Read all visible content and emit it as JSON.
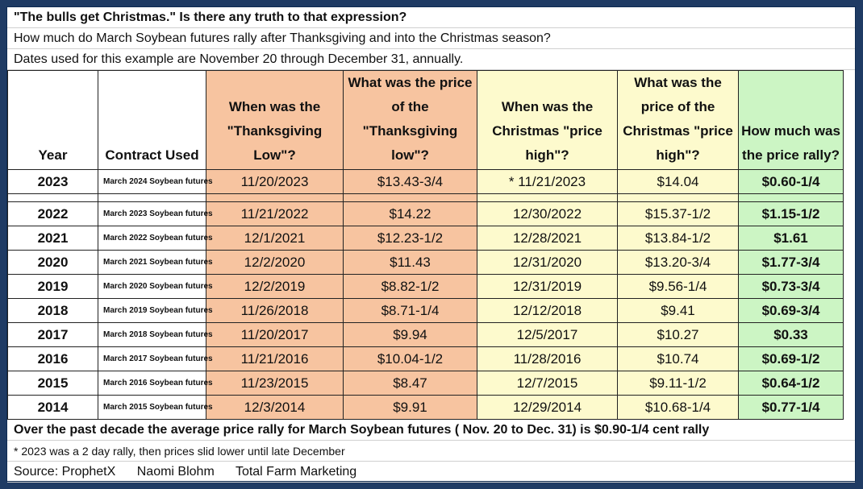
{
  "header": {
    "title": "\"The bulls get Christmas.\" Is there any truth to that expression?",
    "question": "How much do March Soybean futures rally after Thanksgiving and into the Christmas season?",
    "dates_note": "Dates used for this example are November 20 through December 31, annually."
  },
  "table": {
    "headers": {
      "year": "Year",
      "contract": "Contract Used",
      "thanksgiving_low": "When was the \"Thanksgiving Low\"?",
      "thanksgiving_price": "What was the price of the \"Thanksgiving low\"?",
      "christmas_high": "When was the Christmas \"price high\"?",
      "christmas_price": "What was the price of the Christmas \"price high\"?",
      "rally": "How much was the price rally?"
    },
    "rows": [
      {
        "year": "2023",
        "contract": "March 2024 Soybean futures",
        "tlow": "11/20/2023",
        "tprice": "$13.43-3/4",
        "xdate": "*  11/21/2023",
        "xprice": "$14.04",
        "rally": "$0.60-1/4"
      },
      {
        "year": "2022",
        "contract": "March 2023 Soybean futures",
        "tlow": "11/21/2022",
        "tprice": "$14.22",
        "xdate": "12/30/2022",
        "xprice": "$15.37-1/2",
        "rally": "$1.15-1/2"
      },
      {
        "year": "2021",
        "contract": "March 2022 Soybean futures",
        "tlow": "12/1/2021",
        "tprice": "$12.23-1/2",
        "xdate": "12/28/2021",
        "xprice": "$13.84-1/2",
        "rally": "$1.61"
      },
      {
        "year": "2020",
        "contract": "March 2021 Soybean futures",
        "tlow": "12/2/2020",
        "tprice": "$11.43",
        "xdate": "12/31/2020",
        "xprice": "$13.20-3/4",
        "rally": "$1.77-3/4"
      },
      {
        "year": "2019",
        "contract": "March 2020 Soybean futures",
        "tlow": "12/2/2019",
        "tprice": "$8.82-1/2",
        "xdate": "12/31/2019",
        "xprice": "$9.56-1/4",
        "rally": "$0.73-3/4"
      },
      {
        "year": "2018",
        "contract": "March 2019 Soybean futures",
        "tlow": "11/26/2018",
        "tprice": "$8.71-1/4",
        "xdate": "12/12/2018",
        "xprice": "$9.41",
        "rally": "$0.69-3/4"
      },
      {
        "year": "2017",
        "contract": "March 2018 Soybean futures",
        "tlow": "11/20/2017",
        "tprice": "$9.94",
        "xdate": "12/5/2017",
        "xprice": "$10.27",
        "rally": "$0.33"
      },
      {
        "year": "2016",
        "contract": "March 2017 Soybean futures",
        "tlow": "11/21/2016",
        "tprice": "$10.04-1/2",
        "xdate": "11/28/2016",
        "xprice": "$10.74",
        "rally": "$0.69-1/2"
      },
      {
        "year": "2015",
        "contract": "March 2016 Soybean futures",
        "tlow": "11/23/2015",
        "tprice": "$8.47",
        "xdate": "12/7/2015",
        "xprice": "$9.11-1/2",
        "rally": "$0.64-1/2"
      },
      {
        "year": "2014",
        "contract": "March 2015 Soybean futures",
        "tlow": "12/3/2014",
        "tprice": "$9.91",
        "xdate": "12/29/2014",
        "xprice": "$10.68-1/4",
        "rally": "$0.77-1/4"
      }
    ]
  },
  "footer": {
    "summary": "Over the past decade the average price rally for March  Soybean futures ( Nov. 20 to Dec. 31)  is $0.90-1/4  cent rally",
    "footnote": "*  2023 was a 2 day rally, then prices slid lower until late December",
    "source_label": "Source: ProphetX",
    "author": "Naomi Blohm",
    "company": "Total Farm Marketing"
  },
  "colors": {
    "thanksgiving_fill": "#f7c4a0",
    "christmas_fill": "#fdfacd",
    "rally_fill": "#ccf5c4",
    "frame": "#1f3b64"
  }
}
